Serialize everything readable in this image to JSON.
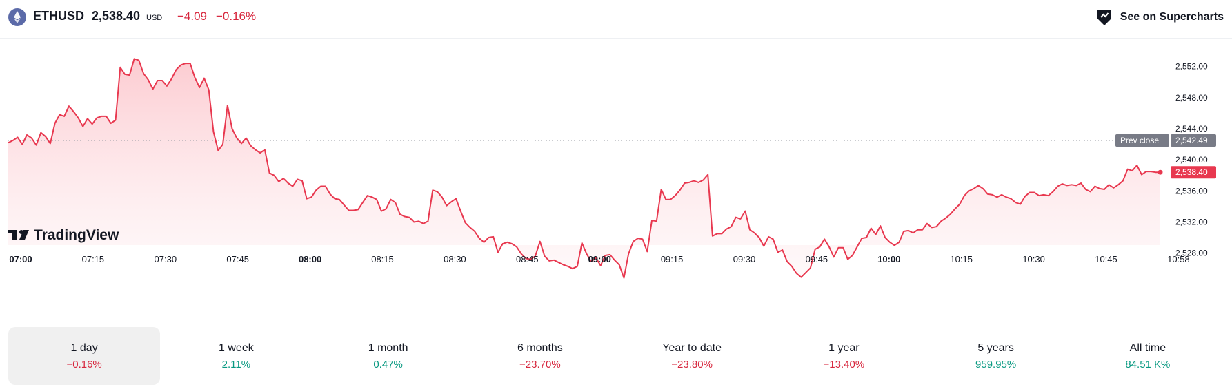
{
  "header": {
    "symbol": "ETHUSD",
    "price": "2,538.40",
    "currency": "USD",
    "change": "−4.09",
    "change_percent": "−0.16%",
    "supercharts_label": "See on Supercharts"
  },
  "logo_text": "TradingView",
  "colors": {
    "line": "#e8384f",
    "fill_top": "#fcc6cc",
    "negative": "#d7263d",
    "positive": "#089981",
    "prev_close_tag": "#787b86",
    "last_price_tag": "#e8384f"
  },
  "chart_data": {
    "type": "area",
    "title": "",
    "xlabel": "",
    "ylabel": "",
    "ylim": [
      2524.6,
      2555.6
    ],
    "x_ticks": [
      "07:00",
      "07:15",
      "07:30",
      "07:45",
      "08:00",
      "08:15",
      "08:30",
      "08:45",
      "09:00",
      "09:15",
      "09:30",
      "09:45",
      "10:00",
      "10:15",
      "10:30",
      "10:45",
      "10:58"
    ],
    "x_ticks_bold": [
      "07:00",
      "08:00",
      "09:00",
      "10:00"
    ],
    "y_ticks": [
      "2,552.00",
      "2,548.00",
      "2,544.00",
      "2,540.00",
      "2,536.00",
      "2,532.00",
      "2,528.00"
    ],
    "prev_close": {
      "label": "Prev close",
      "value": 2542.49,
      "value_text": "2,542.49"
    },
    "last_price": {
      "value": 2538.4,
      "value_text": "2,538.40"
    },
    "grid": false,
    "series": [
      {
        "x_start": "07:00",
        "x_end": "10:58",
        "values": [
          2542.2,
          2542.5,
          2542.9,
          2542.0,
          2543.2,
          2542.8,
          2541.9,
          2543.5,
          2543.0,
          2542.1,
          2544.7,
          2545.8,
          2545.6,
          2546.9,
          2546.2,
          2545.4,
          2544.3,
          2545.3,
          2544.6,
          2545.4,
          2545.6,
          2545.6,
          2544.7,
          2545.1,
          2551.9,
          2551.0,
          2550.9,
          2553.0,
          2552.8,
          2551.1,
          2550.3,
          2549.1,
          2550.2,
          2550.2,
          2549.5,
          2550.4,
          2551.6,
          2552.2,
          2552.4,
          2552.4,
          2550.6,
          2549.3,
          2550.5,
          2549.0,
          2543.6,
          2541.2,
          2542.0,
          2547.0,
          2544.0,
          2542.8,
          2542.1,
          2542.8,
          2541.8,
          2541.3,
          2540.9,
          2541.3,
          2538.3,
          2538.0,
          2537.2,
          2537.6,
          2537.0,
          2536.6,
          2537.5,
          2537.3,
          2535.0,
          2535.2,
          2536.1,
          2536.6,
          2536.6,
          2535.6,
          2535.0,
          2534.9,
          2534.2,
          2533.5,
          2533.5,
          2533.6,
          2534.5,
          2535.4,
          2535.2,
          2534.9,
          2533.4,
          2533.7,
          2534.9,
          2534.5,
          2533.0,
          2532.7,
          2532.6,
          2532.0,
          2532.1,
          2531.8,
          2532.1,
          2536.1,
          2535.9,
          2535.2,
          2534.1,
          2534.6,
          2535.0,
          2533.4,
          2531.9,
          2531.3,
          2530.8,
          2529.9,
          2529.4,
          2530.0,
          2530.1,
          2528.1,
          2529.2,
          2529.4,
          2529.2,
          2528.8,
          2527.9,
          2527.3,
          2527.2,
          2527.6,
          2529.5,
          2527.6,
          2527.0,
          2527.1,
          2526.8,
          2526.5,
          2526.3,
          2526.0,
          2526.3,
          2529.3,
          2527.9,
          2526.9,
          2527.4,
          2526.4,
          2527.7,
          2527.8,
          2527.1,
          2526.5,
          2524.8,
          2527.9,
          2529.5,
          2529.9,
          2529.8,
          2528.2,
          2532.2,
          2532.1,
          2536.2,
          2534.9,
          2534.9,
          2535.4,
          2536.1,
          2537.0,
          2537.1,
          2537.3,
          2537.1,
          2537.4,
          2538.1,
          2530.2,
          2530.5,
          2530.5,
          2531.1,
          2531.4,
          2532.6,
          2532.4,
          2533.4,
          2531.0,
          2530.6,
          2530.0,
          2528.9,
          2530.1,
          2529.8,
          2528.1,
          2528.4,
          2526.9,
          2526.3,
          2525.4,
          2524.9,
          2525.5,
          2526.1,
          2528.5,
          2528.8,
          2529.8,
          2528.8,
          2527.5,
          2528.7,
          2528.7,
          2527.2,
          2527.7,
          2528.8,
          2529.9,
          2530.0,
          2531.2,
          2530.4,
          2531.5,
          2530.0,
          2529.4,
          2529.0,
          2529.4,
          2530.8,
          2530.9,
          2530.6,
          2531.0,
          2531.0,
          2531.8,
          2531.3,
          2531.4,
          2532.1,
          2532.5,
          2533.0,
          2533.7,
          2534.3,
          2535.4,
          2536.0,
          2536.3,
          2536.7,
          2536.3,
          2535.6,
          2535.5,
          2535.2,
          2535.5,
          2535.2,
          2535.0,
          2534.5,
          2534.3,
          2535.3,
          2535.8,
          2535.8,
          2535.4,
          2535.5,
          2535.4,
          2535.9,
          2536.6,
          2536.9,
          2536.7,
          2536.8,
          2536.7,
          2537.0,
          2536.2,
          2535.9,
          2536.6,
          2536.3,
          2536.2,
          2536.8,
          2536.4,
          2536.8,
          2537.3,
          2538.8,
          2538.6,
          2539.3,
          2538.1,
          2538.5,
          2538.5,
          2538.4,
          2538.4
        ]
      }
    ]
  },
  "periods": [
    {
      "label": "1 day",
      "value": "−0.16%",
      "sign": "neg",
      "active": true
    },
    {
      "label": "1 week",
      "value": "2.11%",
      "sign": "pos",
      "active": false
    },
    {
      "label": "1 month",
      "value": "0.47%",
      "sign": "pos",
      "active": false
    },
    {
      "label": "6 months",
      "value": "−23.70%",
      "sign": "neg",
      "active": false
    },
    {
      "label": "Year to date",
      "value": "−23.80%",
      "sign": "neg",
      "active": false
    },
    {
      "label": "1 year",
      "value": "−13.40%",
      "sign": "neg",
      "active": false
    },
    {
      "label": "5 years",
      "value": "959.95%",
      "sign": "pos",
      "active": false
    },
    {
      "label": "All time",
      "value": "84.51 K%",
      "sign": "pos",
      "active": false
    }
  ]
}
